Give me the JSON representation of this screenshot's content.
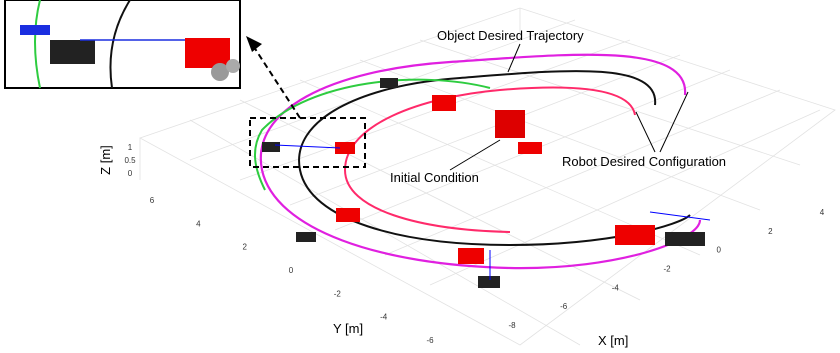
{
  "annotations": {
    "object_trajectory": "Object Desired Trajectory",
    "robot_configuration": "Robot Desired Configuration",
    "initial_condition": "Initial Condition"
  },
  "axes": {
    "x_label": "X [m]",
    "y_label": "Y [m]",
    "z_label": "Z [m]",
    "x_ticks": [
      -8,
      -6,
      -4,
      -2,
      0,
      2,
      4
    ],
    "y_ticks": [
      6,
      4,
      2,
      0,
      -2,
      -4,
      -6
    ],
    "z_ticks": [
      1,
      0.5,
      0
    ]
  }
}
